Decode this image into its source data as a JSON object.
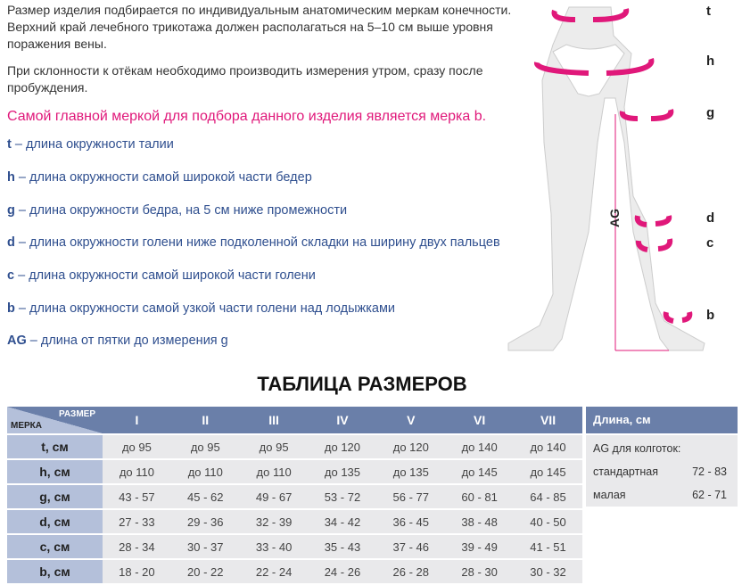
{
  "intro": [
    "Размер изделия подбирается по индивидуальным анатомическим меркам конечности. Верхний край лечебного трикотажа должен располагаться на 5–10 см выше уровня поражения вены.",
    "При склонности к отёкам необходимо производить измерения утром, сразу после пробуждения."
  ],
  "highlight": "Самой главной меркой для подбора данного изделия является мерка b.",
  "definitions": [
    {
      "key": "t",
      "text": " – длина окружности талии"
    },
    {
      "key": "h",
      "text": " – длина окружности самой широкой части бедер"
    },
    {
      "key": "g",
      "text": " – длина окружности бедра, на 5 см ниже промежности"
    },
    {
      "key": "d",
      "text": " – длина окружности голени ниже подколенной складки на ширину двух пальцев"
    },
    {
      "key": "c",
      "text": " – длина окружности самой широкой части голени"
    },
    {
      "key": "b",
      "text": " – длина окружности самой узкой части голени над лодыжками"
    },
    {
      "key": "AG",
      "text": " – длина от пятки до измерения g"
    }
  ],
  "figure_labels": {
    "t": "t",
    "h": "h",
    "g": "g",
    "d": "d",
    "c": "c",
    "b": "b",
    "ag": "AG"
  },
  "table_title": "ТАБЛИЦА РАЗМЕРОВ",
  "table": {
    "corner_size": "РАЗМЕР",
    "corner_measure": "МЕРКА",
    "sizes": [
      "I",
      "II",
      "III",
      "IV",
      "V",
      "VI",
      "VII"
    ],
    "rows": [
      {
        "label": "t, см",
        "values": [
          "до 95",
          "до 95",
          "до 95",
          "до 120",
          "до 120",
          "до 140",
          "до 140"
        ]
      },
      {
        "label": "h, см",
        "values": [
          "до 110",
          "до 110",
          "до 110",
          "до 135",
          "до 135",
          "до 145",
          "до 145"
        ]
      },
      {
        "label": "g, см",
        "values": [
          "43 - 57",
          "45 - 62",
          "49 - 67",
          "53 - 72",
          "56 - 77",
          "60 - 81",
          "64 - 85"
        ]
      },
      {
        "label": "d, см",
        "values": [
          "27 - 33",
          "29 - 36",
          "32 - 39",
          "34 - 42",
          "36 - 45",
          "38 - 48",
          "40 - 50"
        ]
      },
      {
        "label": "c, см",
        "values": [
          "28 - 34",
          "30 - 37",
          "33 - 40",
          "35 - 43",
          "37 - 46",
          "39 - 49",
          "41 - 51"
        ]
      },
      {
        "label": "b, см",
        "values": [
          "18 - 20",
          "20 - 22",
          "22 - 24",
          "24 - 26",
          "26 - 28",
          "28 - 30",
          "30 - 32"
        ]
      }
    ]
  },
  "length_table": {
    "header": "Длина, см",
    "subheader": "AG для колготок:",
    "rows": [
      {
        "label": "стандартная",
        "value": "72 - 83"
      },
      {
        "label": "малая",
        "value": "62 - 71"
      }
    ]
  },
  "colors": {
    "accent": "#e0187a",
    "header": "#6a7fa9",
    "label_cell": "#b4c0da",
    "cell": "#e9e9eb",
    "text_blue": "#2f4f8f"
  }
}
